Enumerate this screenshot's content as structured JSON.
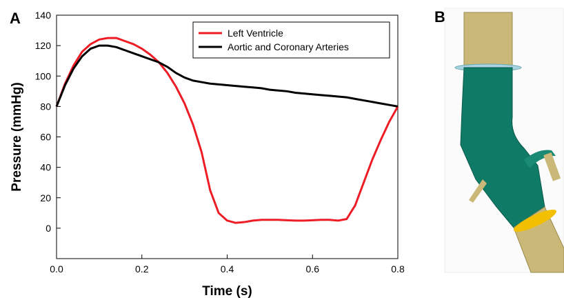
{
  "panels": [
    "A",
    "B"
  ],
  "chart_data": {
    "type": "line",
    "xlabel": "Time (s)",
    "ylabel": "Pressure (mmHg)",
    "xlim": [
      0,
      0.8
    ],
    "ylim": [
      -20,
      140
    ],
    "xticks": [
      {
        "value": 0,
        "label": "0.0"
      },
      0.2,
      0.4,
      0.6,
      0.8
    ],
    "yticks": [
      0,
      20,
      40,
      60,
      80,
      100,
      120,
      140
    ],
    "legend": "upper right",
    "x": [
      0,
      0.02,
      0.04,
      0.06,
      0.08,
      0.1,
      0.12,
      0.14,
      0.16,
      0.18,
      0.2,
      0.22,
      0.24,
      0.26,
      0.28,
      0.3,
      0.32,
      0.34,
      0.36,
      0.38,
      0.4,
      0.42,
      0.44,
      0.46,
      0.48,
      0.5,
      0.52,
      0.54,
      0.56,
      0.58,
      0.6,
      0.62,
      0.64,
      0.66,
      0.68,
      0.7,
      0.72,
      0.74,
      0.76,
      0.78,
      0.8
    ],
    "series": [
      {
        "name": "Left Ventricle",
        "color": "#ee1c25",
        "values": [
          80,
          95,
          107,
          116,
          121,
          124,
          125,
          125,
          123,
          121,
          118,
          114,
          109,
          102,
          93,
          82,
          68,
          50,
          25,
          10,
          5,
          3.5,
          4,
          5,
          5.5,
          5.5,
          5.5,
          5.2,
          5,
          5,
          5.2,
          5.5,
          5.5,
          5,
          6,
          15,
          30,
          45,
          58,
          70,
          80
        ]
      },
      {
        "name": "Aortic and Coronary Arteries",
        "color": "#000000",
        "values": [
          80,
          94,
          105,
          113,
          118,
          120,
          120,
          119,
          117,
          115,
          113,
          111,
          109,
          106,
          102,
          99,
          97,
          96,
          95,
          94.5,
          94,
          93.5,
          93,
          92.5,
          92,
          91,
          90.5,
          90,
          89,
          88.5,
          88,
          87.5,
          87,
          86.5,
          86,
          85,
          84,
          83,
          82,
          81,
          80
        ]
      }
    ]
  }
}
